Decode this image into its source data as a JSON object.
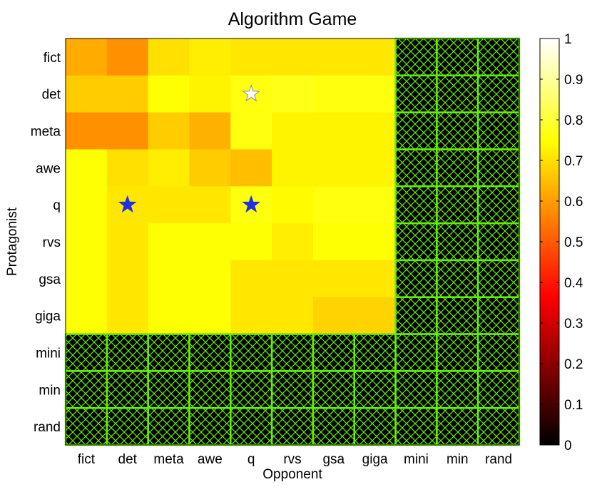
{
  "chart_data": {
    "type": "heatmap",
    "title": "Algorithm Game",
    "xlabel": "Opponent",
    "ylabel": "Protagonist",
    "x_categories": [
      "fict",
      "det",
      "meta",
      "awe",
      "q",
      "rvs",
      "gsa",
      "giga",
      "mini",
      "min",
      "rand"
    ],
    "y_categories": [
      "fict",
      "det",
      "meta",
      "awe",
      "q",
      "rvs",
      "gsa",
      "giga",
      "mini",
      "min",
      "rand"
    ],
    "values": [
      [
        0.62,
        0.58,
        0.7,
        0.72,
        0.71,
        0.71,
        0.71,
        0.71,
        null,
        null,
        null
      ],
      [
        0.67,
        0.67,
        0.75,
        0.73,
        0.76,
        0.77,
        0.76,
        0.76,
        null,
        null,
        null
      ],
      [
        0.58,
        0.58,
        0.67,
        0.63,
        0.76,
        0.73,
        0.73,
        0.73,
        null,
        null,
        null
      ],
      [
        0.75,
        0.7,
        0.72,
        0.67,
        0.65,
        0.73,
        0.73,
        0.73,
        null,
        null,
        null
      ],
      [
        0.75,
        0.71,
        0.71,
        0.71,
        0.76,
        0.74,
        0.76,
        0.76,
        null,
        null,
        null
      ],
      [
        0.75,
        0.71,
        0.75,
        0.75,
        0.75,
        0.72,
        0.75,
        0.75,
        null,
        null,
        null
      ],
      [
        0.75,
        0.71,
        0.75,
        0.75,
        0.71,
        0.71,
        0.71,
        0.71,
        null,
        null,
        null
      ],
      [
        0.75,
        0.71,
        0.75,
        0.75,
        0.71,
        0.71,
        0.68,
        0.68,
        null,
        null,
        null
      ],
      [
        null,
        null,
        null,
        null,
        null,
        null,
        null,
        null,
        null,
        null,
        null
      ],
      [
        null,
        null,
        null,
        null,
        null,
        null,
        null,
        null,
        null,
        null,
        null
      ],
      [
        null,
        null,
        null,
        null,
        null,
        null,
        null,
        null,
        null,
        null,
        null
      ]
    ],
    "missing_hatch_color": "#66ee00",
    "missing_fill_color": "#000000",
    "colormap": "hot",
    "colorbar": {
      "min": 0,
      "max": 1,
      "ticks": [
        0,
        0.1,
        0.2,
        0.3,
        0.4,
        0.5,
        0.6,
        0.7,
        0.8,
        0.9,
        1
      ],
      "tick_labels": [
        "0",
        "0.1",
        "0.2",
        "0.3",
        "0.4",
        "0.5",
        "0.6",
        "0.7",
        "0.8",
        "0.9",
        "1"
      ]
    },
    "markers": [
      {
        "row": "det",
        "col": "q",
        "symbol": "star",
        "style": "white"
      },
      {
        "row": "q",
        "col": "det",
        "symbol": "star",
        "style": "blue"
      },
      {
        "row": "q",
        "col": "q",
        "symbol": "star",
        "style": "blue"
      }
    ],
    "marker_colors": {
      "blue": "#1f2fe6",
      "white": "#ffffff"
    },
    "grid": false
  }
}
